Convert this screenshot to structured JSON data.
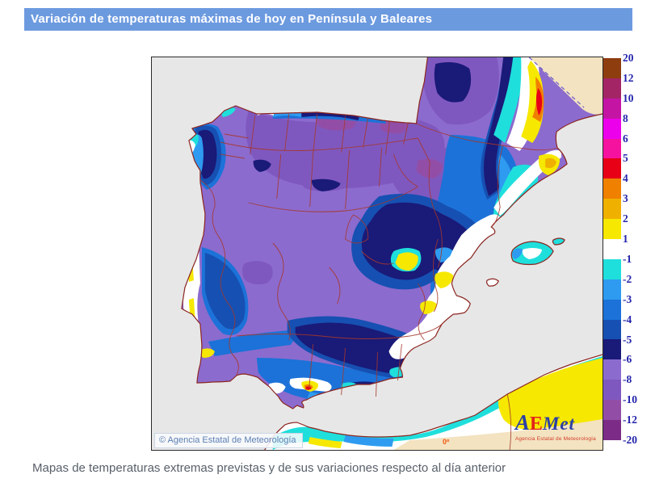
{
  "header": {
    "title": "Variación de temperaturas máximas de hoy en Península y Baleares"
  },
  "caption": "Mapas de temperaturas extremas previstas y de sus variaciones respecto al día anterior",
  "map": {
    "attribution": "© Agencia Estatal de Meteorología",
    "meridian_label": "0º",
    "logo": {
      "text_a": "A",
      "text_e": "E",
      "text_met": "Met",
      "subtitle": "Agencia Estatal de Meteorología"
    }
  },
  "legend": {
    "boundary_labels": [
      "20",
      "12",
      "10",
      "8",
      "6",
      "5",
      "4",
      "3",
      "2",
      "1",
      "-1",
      "-2",
      "-3",
      "-4",
      "-5",
      "-6",
      "-8",
      "-10",
      "-12",
      "-20"
    ],
    "bands": [
      {
        "range": "12..20",
        "color": "#8E3D0F"
      },
      {
        "range": "10..12",
        "color": "#A32566"
      },
      {
        "range": "8..10",
        "color": "#C414A4"
      },
      {
        "range": "6..8",
        "color": "#EC00EC"
      },
      {
        "range": "5..6",
        "color": "#F5129E"
      },
      {
        "range": "4..5",
        "color": "#E80016"
      },
      {
        "range": "3..4",
        "color": "#F08000"
      },
      {
        "range": "2..3",
        "color": "#F0B000"
      },
      {
        "range": "1..2",
        "color": "#F6E800"
      },
      {
        "range": "-1..1",
        "color": "#FFFFFF"
      },
      {
        "range": "-2..-1",
        "color": "#1FDFDC"
      },
      {
        "range": "-3..-2",
        "color": "#2E9BF0"
      },
      {
        "range": "-4..-3",
        "color": "#1C72D8"
      },
      {
        "range": "-5..-4",
        "color": "#1650B2"
      },
      {
        "range": "-6..-5",
        "color": "#1A1A78"
      },
      {
        "range": "-8..-6",
        "color": "#8C6BCE"
      },
      {
        "range": "-10..-8",
        "color": "#7F58BF"
      },
      {
        "range": "-12..-10",
        "color": "#924EA6"
      },
      {
        "range": "-20..-12",
        "color": "#7C2B86"
      }
    ],
    "label_color": "#2323AC"
  },
  "colors": {
    "header_bg": "#6C9ADF",
    "header_text": "#FFFFFF",
    "caption_text": "#58606A",
    "sea": "#E7E7E7",
    "outside_domain": "#F3E3C1",
    "coastline": "#8B2520",
    "province_border": "#A5372B",
    "domain_edge_dashed": "#6A5ACD",
    "n8": "#8C6BCE",
    "n10": "#7F58BF",
    "n12": "#924EA6",
    "n6": "#1A1A78",
    "n5": "#1650B2",
    "n4": "#1C72D8",
    "n3": "#2E9BF0",
    "m1": "#1FDFDC",
    "white": "#FFFFFF",
    "p2": "#F6E800",
    "p3": "#F0B000",
    "p4": "#F08000",
    "p5": "#E80016"
  }
}
